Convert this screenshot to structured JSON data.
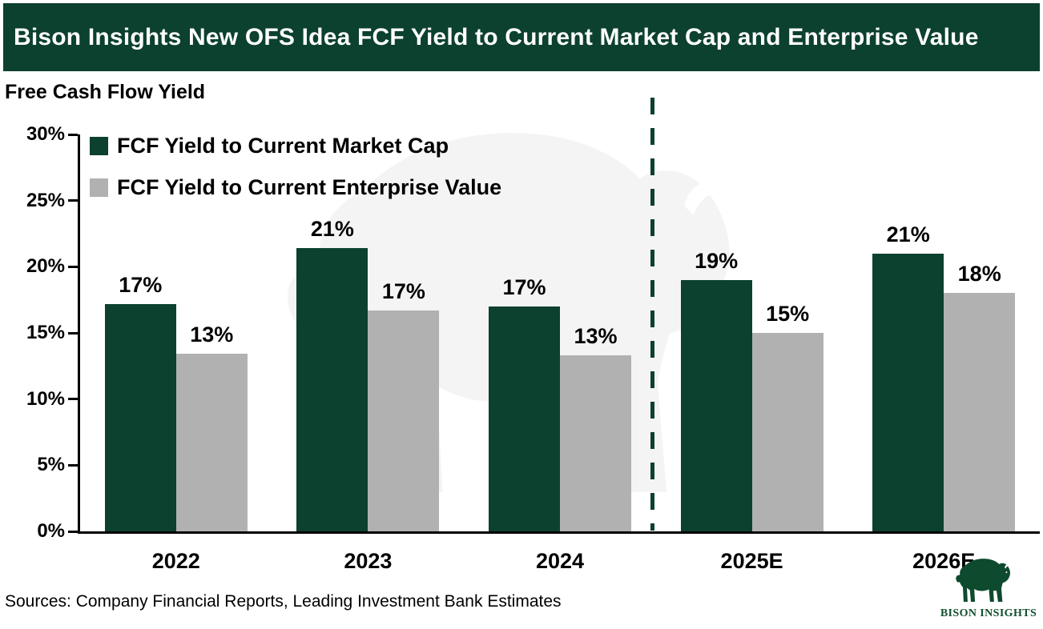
{
  "header": {
    "title": "Bison Insights New OFS Idea FCF Yield to Current Market Cap and Enterprise Value"
  },
  "colors": {
    "accent_green": "#0c402f",
    "bar_gray": "#b1b1b1",
    "watermark_gray": "#f4f4f4",
    "logo_green": "#0e4a2e",
    "axis_black": "#000000",
    "title_text": "#ffffff"
  },
  "chart_data": {
    "type": "bar",
    "title": "Bison Insights New OFS Idea FCF Yield to Current Market Cap and Enterprise Value",
    "axis_title": "Free Cash Flow Yield",
    "categories": [
      "2022",
      "2023",
      "2024",
      "2025E",
      "2026E"
    ],
    "series": [
      {
        "name": "FCF Yield to Current Market Cap",
        "color": "#0c402f",
        "values": [
          17.2,
          21.4,
          17.0,
          19.0,
          21.0
        ],
        "labels": [
          "17%",
          "21%",
          "17%",
          "19%",
          "21%"
        ]
      },
      {
        "name": "FCF Yield to Current Enterprise Value",
        "color": "#b1b1b1",
        "values": [
          13.4,
          16.7,
          13.3,
          15.0,
          18.0
        ],
        "labels": [
          "13%",
          "17%",
          "13%",
          "15%",
          "18%"
        ]
      }
    ],
    "ylim": [
      0,
      30
    ],
    "ytick_values": [
      0,
      5,
      10,
      15,
      20,
      25,
      30
    ],
    "ytick_labels": [
      "0%",
      "5%",
      "10%",
      "15%",
      "20%",
      "25%",
      "30%"
    ],
    "grid": false,
    "legend_position": "top-left-inside",
    "forecast_separator": {
      "between": [
        "2024",
        "2025E"
      ],
      "style": "dashed",
      "color": "#0c402f"
    }
  },
  "footer": {
    "sources": "Sources: Company Financial Reports, Leading Investment Bank Estimates"
  },
  "logo": {
    "text": "BISON INSIGHTS"
  },
  "watermark": "bison-silhouette"
}
